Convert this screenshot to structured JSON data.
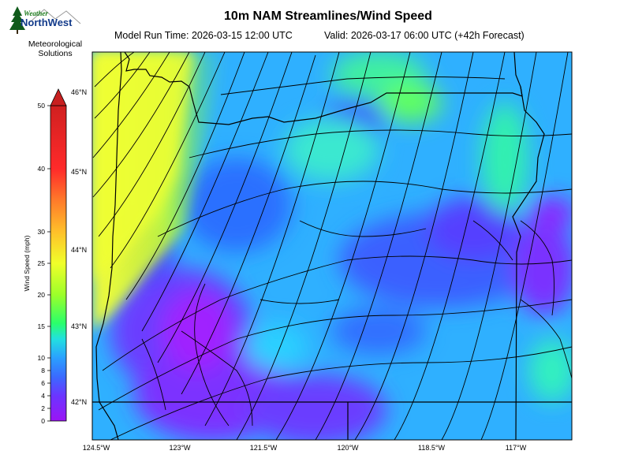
{
  "header": {
    "title": "10m NAM Streamlines/Wind Speed",
    "model_run_label": "Model Run Time: 2026-03-15 12:00 UTC",
    "valid_label": "Valid: 2026-03-17 06:00 UTC  (+42h Forecast)"
  },
  "logo": {
    "brand_small": "Weather",
    "brand_large": "NorthWest",
    "line1": "Meteorological",
    "line2": "Solutions"
  },
  "colorbar": {
    "label": "Wind Speed (mph)",
    "ticks": [
      "0",
      "2",
      "4",
      "6",
      "8",
      "10",
      "15",
      "20",
      "25",
      "30",
      "40",
      "50"
    ],
    "tick_values": [
      0,
      2,
      4,
      6,
      8,
      10,
      15,
      20,
      25,
      30,
      40,
      50
    ],
    "range_mph": [
      0,
      50
    ]
  },
  "map": {
    "lat_labels": [
      "46°N",
      "45°N",
      "44°N",
      "43°N",
      "42°N"
    ],
    "lon_labels": [
      "124.5°W",
      "123°W",
      "121.5°W",
      "120°W",
      "118.5°W",
      "117°W"
    ]
  }
}
